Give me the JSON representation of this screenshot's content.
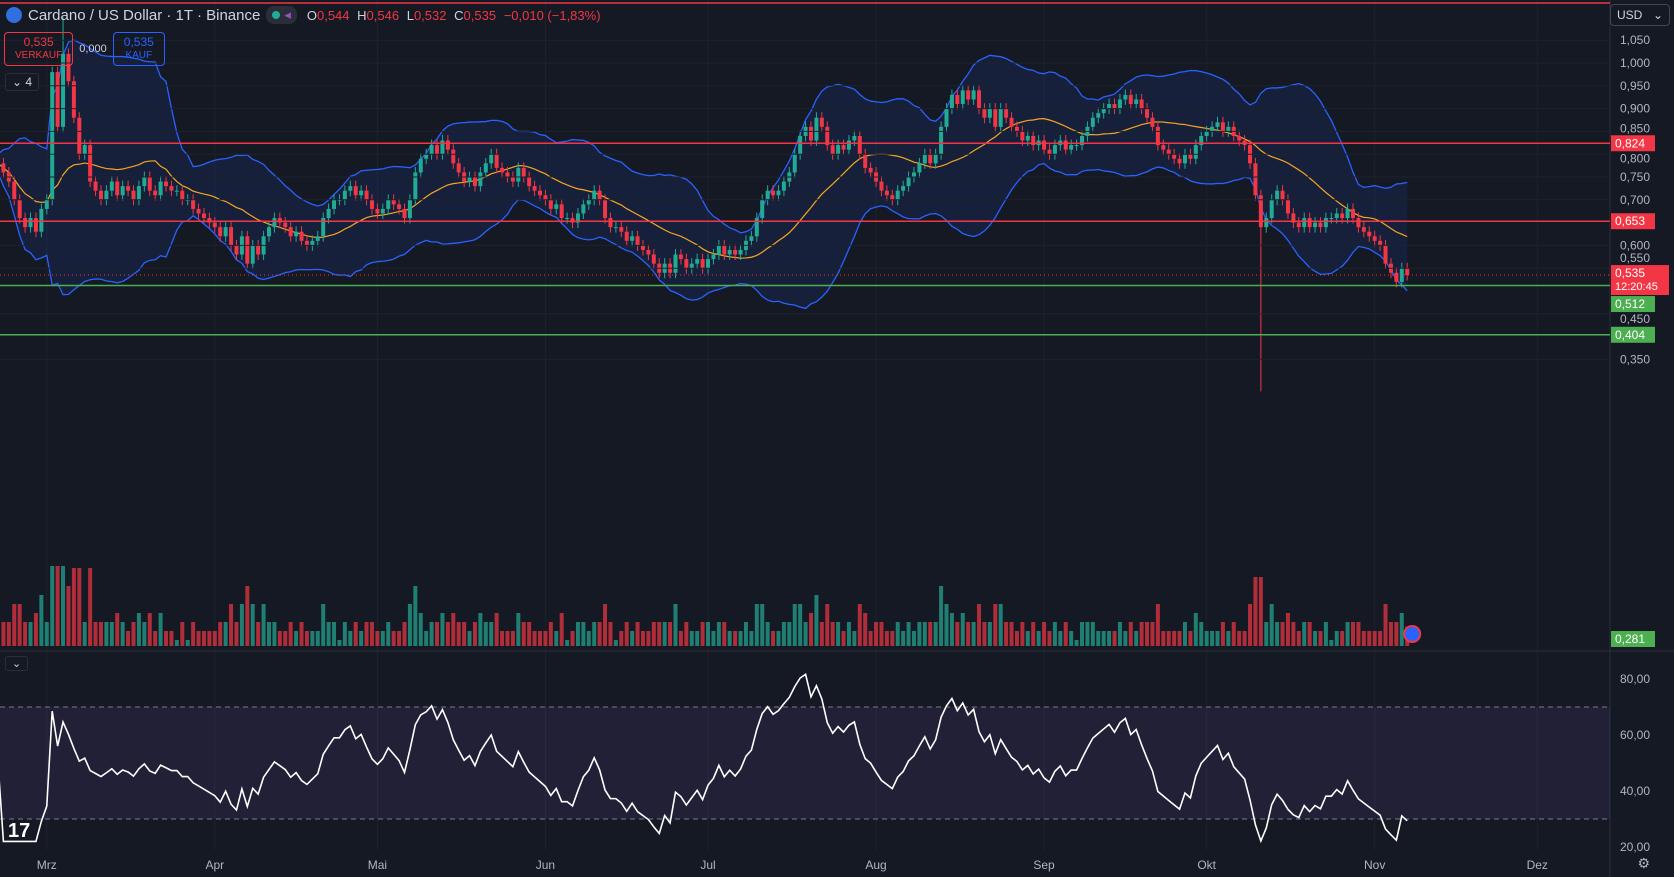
{
  "header": {
    "title": "Cardano / US Dollar · 1T · Binance",
    "open_label": "O",
    "open": "0,544",
    "high_label": "H",
    "high": "0,546",
    "low_label": "L",
    "low": "0,532",
    "close_label": "C",
    "close": "0,535",
    "change": "−0,010 (−1,83%)"
  },
  "trade": {
    "sell_price": "0,535",
    "sell_label": "VERKAUF",
    "spread": "0,000",
    "buy_price": "0,535",
    "buy_label": "KAUF"
  },
  "indicators_toggle": "4",
  "currency": "USD",
  "colors": {
    "bg": "#151924",
    "up": "#22ab94",
    "down": "#f23645",
    "band": "#2962ff",
    "ma": "#f5a623",
    "rsi": "#ffffff",
    "resistance": "#f23645",
    "support": "#4caf50"
  },
  "chart_data": {
    "type": "candlestick",
    "start_date": "02-20",
    "months": [
      "Mrz",
      "Apr",
      "Mai",
      "Jun",
      "Jul",
      "Aug",
      "Sep",
      "Okt",
      "Nov",
      "Dez"
    ],
    "price_ticks": [
      "1,050",
      "1,000",
      "0,950",
      "0,900",
      "0,850",
      "0,800",
      "0,750",
      "0,700",
      "0,600",
      "0,550",
      "0,450",
      "0,350"
    ],
    "rsi_ticks": [
      "80,00",
      "60,00",
      "40,00",
      "20,00"
    ],
    "price_range": [
      0.28,
      1.1
    ],
    "rsi_bands": [
      30,
      70
    ],
    "levels": [
      {
        "value": 0.824,
        "label": "0,824",
        "kind": "resistance"
      },
      {
        "value": 0.653,
        "label": "0,653",
        "kind": "resistance"
      },
      {
        "value": 0.512,
        "label": "0,512",
        "kind": "support"
      },
      {
        "value": 0.404,
        "label": "0,404",
        "kind": "support"
      }
    ],
    "current": {
      "value": 0.535,
      "label": "0,535",
      "countdown": "12:20:45"
    },
    "volume_axis_label": "0,281",
    "wicks": [
      {
        "day": 12,
        "high": 1.1
      },
      {
        "day": 233,
        "low": 0.28
      }
    ],
    "closes": [
      0.78,
      0.76,
      0.74,
      0.7,
      0.66,
      0.64,
      0.66,
      0.63,
      0.68,
      0.7,
      0.98,
      0.86,
      1.02,
      0.96,
      0.88,
      0.8,
      0.82,
      0.74,
      0.72,
      0.7,
      0.72,
      0.74,
      0.71,
      0.73,
      0.72,
      0.7,
      0.73,
      0.75,
      0.72,
      0.71,
      0.74,
      0.73,
      0.72,
      0.72,
      0.7,
      0.7,
      0.68,
      0.67,
      0.66,
      0.65,
      0.64,
      0.62,
      0.64,
      0.6,
      0.58,
      0.62,
      0.56,
      0.6,
      0.58,
      0.62,
      0.64,
      0.66,
      0.65,
      0.64,
      0.62,
      0.63,
      0.61,
      0.6,
      0.61,
      0.62,
      0.66,
      0.68,
      0.7,
      0.7,
      0.72,
      0.73,
      0.71,
      0.72,
      0.7,
      0.68,
      0.67,
      0.68,
      0.7,
      0.69,
      0.68,
      0.66,
      0.7,
      0.76,
      0.79,
      0.8,
      0.82,
      0.8,
      0.83,
      0.81,
      0.78,
      0.76,
      0.74,
      0.75,
      0.73,
      0.76,
      0.78,
      0.8,
      0.77,
      0.76,
      0.75,
      0.74,
      0.77,
      0.75,
      0.73,
      0.72,
      0.71,
      0.7,
      0.68,
      0.69,
      0.66,
      0.66,
      0.65,
      0.67,
      0.69,
      0.7,
      0.72,
      0.7,
      0.66,
      0.64,
      0.64,
      0.63,
      0.61,
      0.62,
      0.6,
      0.59,
      0.58,
      0.56,
      0.54,
      0.56,
      0.54,
      0.58,
      0.57,
      0.55,
      0.56,
      0.57,
      0.55,
      0.57,
      0.58,
      0.6,
      0.58,
      0.59,
      0.58,
      0.59,
      0.61,
      0.62,
      0.66,
      0.7,
      0.72,
      0.71,
      0.72,
      0.74,
      0.76,
      0.8,
      0.84,
      0.86,
      0.83,
      0.88,
      0.86,
      0.82,
      0.8,
      0.82,
      0.81,
      0.83,
      0.84,
      0.8,
      0.77,
      0.76,
      0.74,
      0.72,
      0.71,
      0.7,
      0.72,
      0.73,
      0.75,
      0.76,
      0.78,
      0.8,
      0.78,
      0.8,
      0.86,
      0.9,
      0.93,
      0.91,
      0.94,
      0.92,
      0.94,
      0.9,
      0.88,
      0.9,
      0.86,
      0.9,
      0.88,
      0.86,
      0.85,
      0.83,
      0.84,
      0.82,
      0.83,
      0.81,
      0.8,
      0.82,
      0.83,
      0.81,
      0.82,
      0.82,
      0.84,
      0.86,
      0.88,
      0.89,
      0.9,
      0.91,
      0.9,
      0.92,
      0.93,
      0.91,
      0.92,
      0.9,
      0.88,
      0.86,
      0.82,
      0.81,
      0.8,
      0.79,
      0.78,
      0.8,
      0.79,
      0.82,
      0.84,
      0.85,
      0.86,
      0.87,
      0.85,
      0.86,
      0.84,
      0.83,
      0.82,
      0.78,
      0.71,
      0.64,
      0.66,
      0.7,
      0.72,
      0.7,
      0.67,
      0.65,
      0.64,
      0.66,
      0.64,
      0.65,
      0.64,
      0.66,
      0.66,
      0.67,
      0.66,
      0.68,
      0.66,
      0.64,
      0.63,
      0.62,
      0.61,
      0.6,
      0.56,
      0.54,
      0.52,
      0.55,
      0.535
    ]
  }
}
